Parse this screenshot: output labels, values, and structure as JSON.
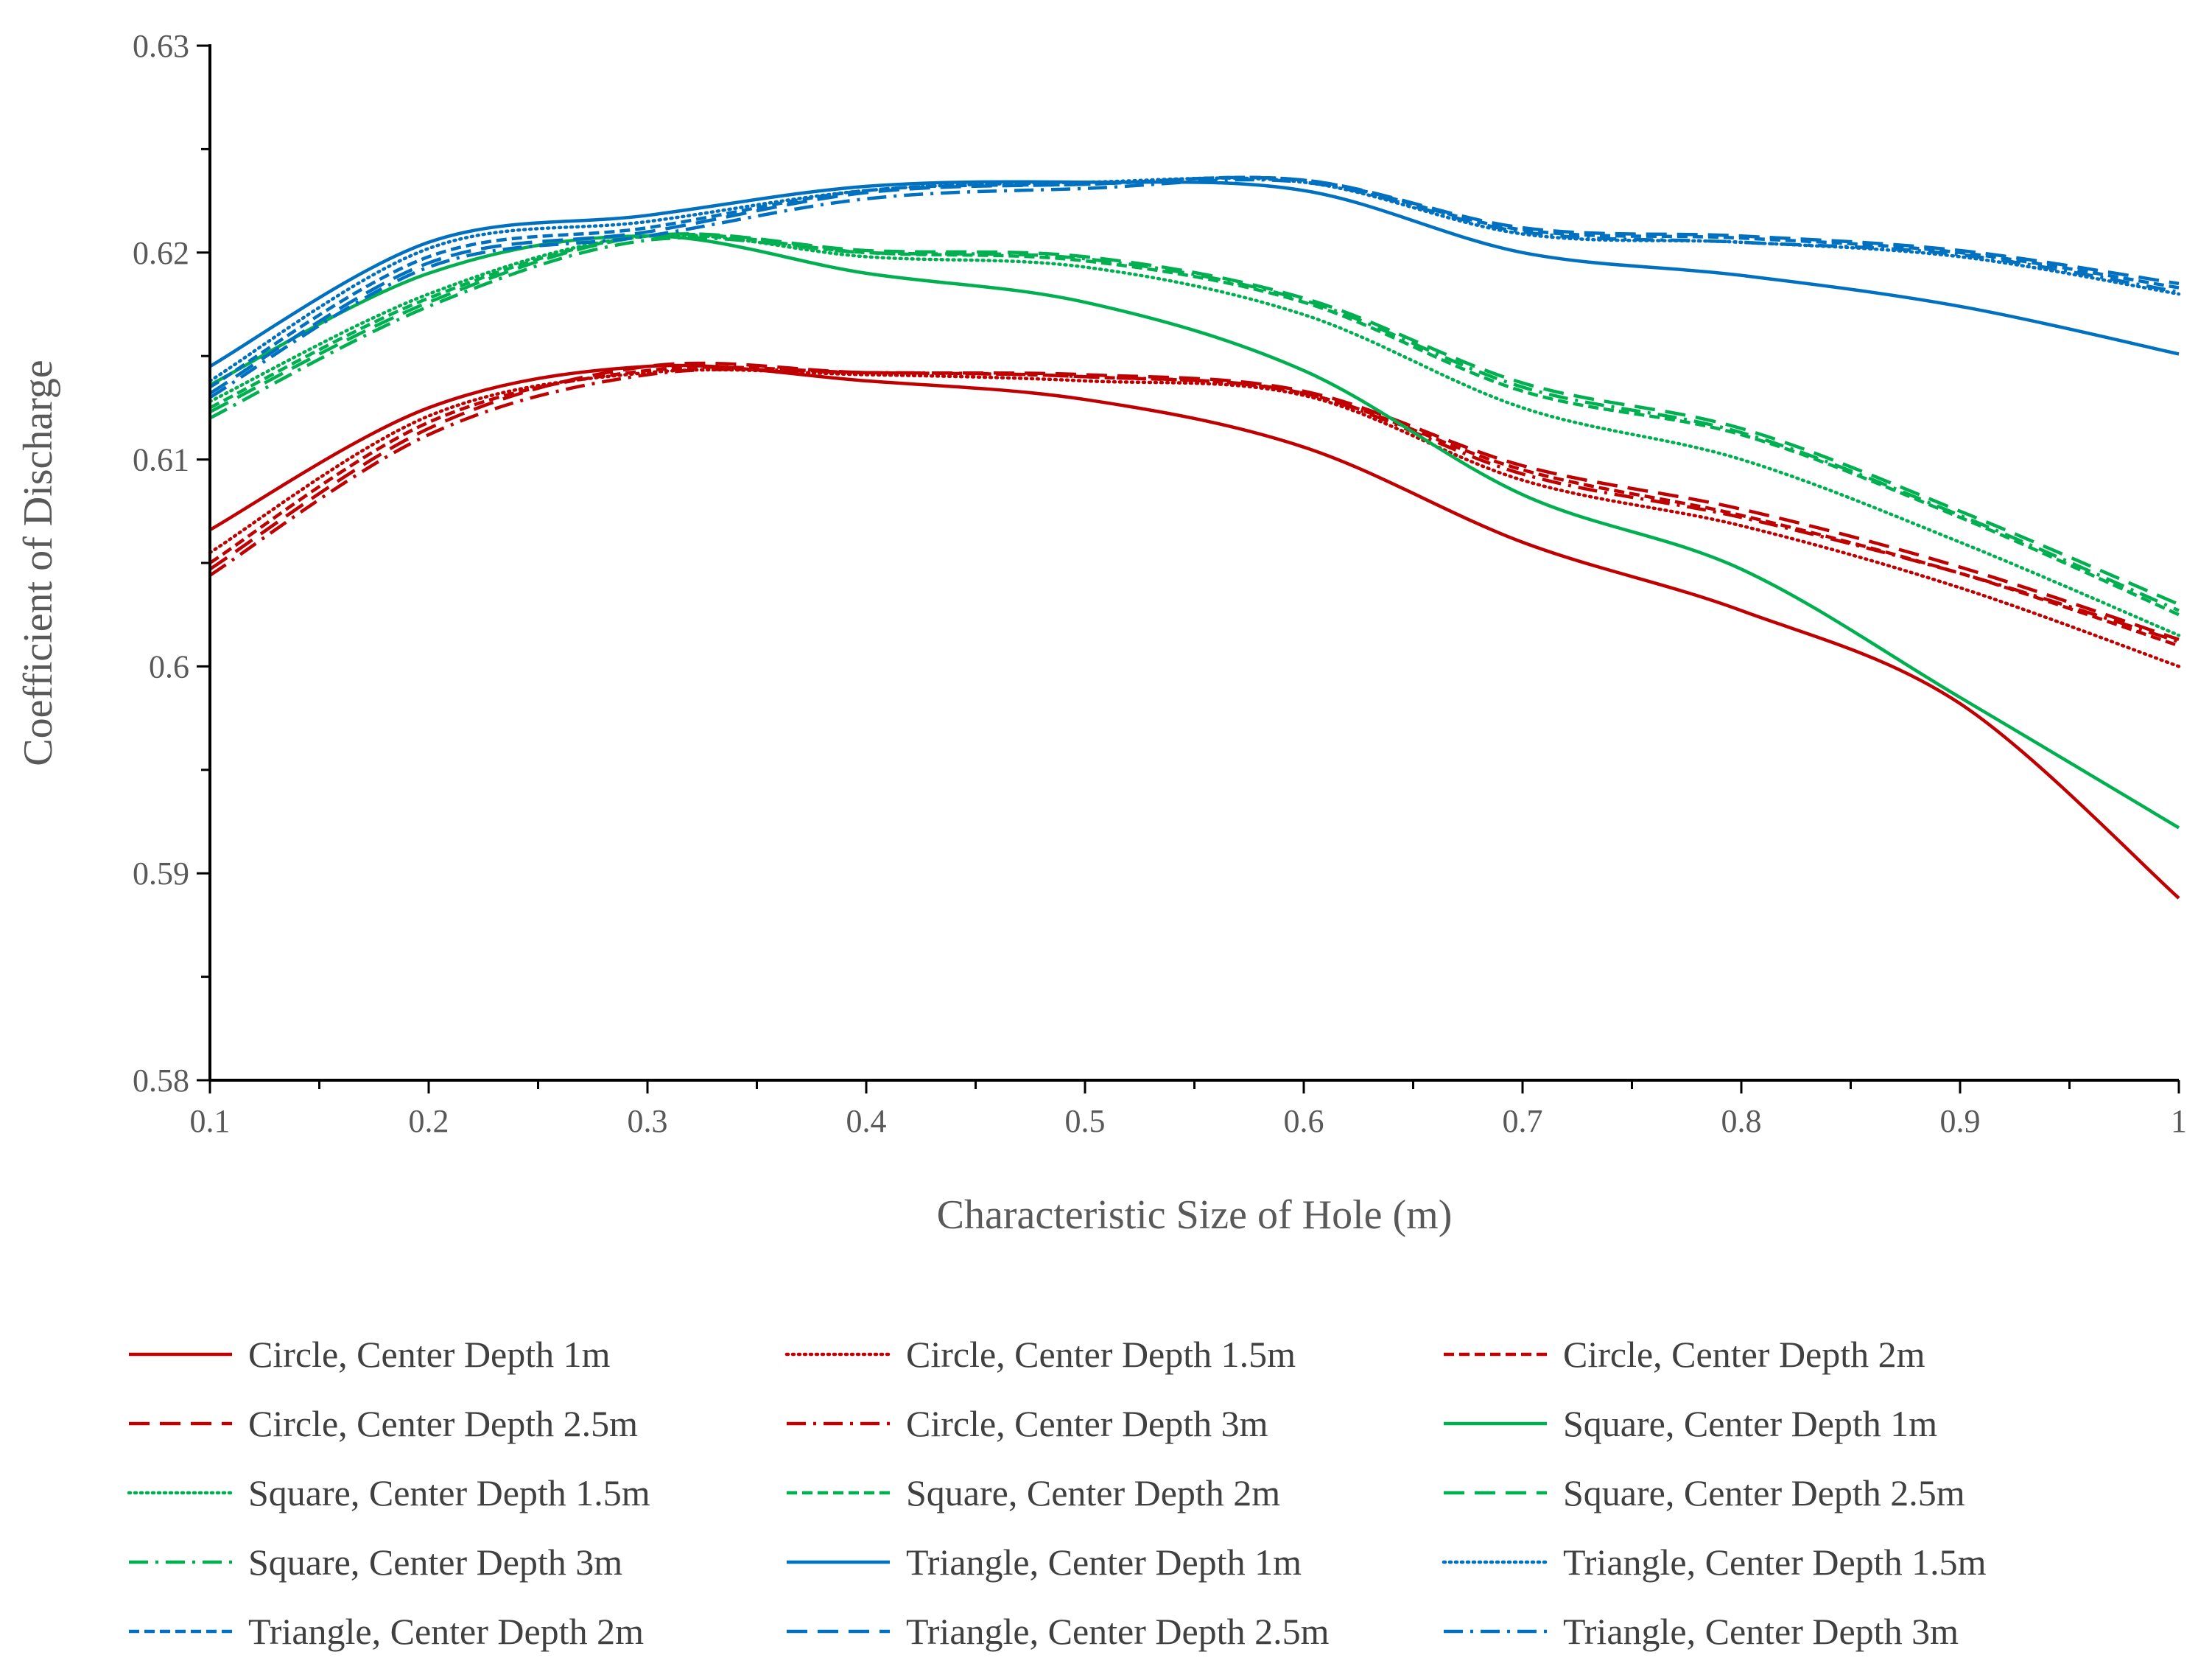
{
  "chart_data": {
    "type": "line",
    "title": "",
    "xlabel": "Characteristic Size of Hole (m)",
    "ylabel": "Coefficient of Discharge",
    "xlim": [
      0.1,
      1
    ],
    "ylim": [
      0.58,
      0.63
    ],
    "xticks": [
      "0.1",
      "0.2",
      "0.3",
      "0.4",
      "0.5",
      "0.6",
      "0.7",
      "0.8",
      "0.9",
      "1"
    ],
    "yticks": [
      "0.58",
      "0.59",
      "0.6",
      "0.61",
      "0.62",
      "0.63"
    ],
    "grid": false,
    "legend_position": "bottom",
    "x": [
      0.1,
      0.2,
      0.3,
      0.4,
      0.5,
      0.6,
      0.7,
      0.8,
      0.9,
      1.0
    ],
    "series": [
      {
        "name": "Circle, Center Depth 1m",
        "color": "#C00000",
        "dash": "solid",
        "values": [
          0.6066,
          0.6125,
          0.6145,
          0.6138,
          0.6129,
          0.6106,
          0.606,
          0.6027,
          0.5982,
          0.5888
        ]
      },
      {
        "name": "Circle, Center Depth 1.5m",
        "color": "#C00000",
        "dash": "dotted",
        "values": [
          0.6055,
          0.6121,
          0.6142,
          0.6141,
          0.6138,
          0.6131,
          0.609,
          0.6068,
          0.6038,
          0.6
        ]
      },
      {
        "name": "Circle, Center Depth 2m",
        "color": "#C00000",
        "dash": "dash-short",
        "values": [
          0.605,
          0.6118,
          0.6143,
          0.6142,
          0.614,
          0.6132,
          0.6095,
          0.6073,
          0.6045,
          0.601
        ]
      },
      {
        "name": "Circle, Center Depth 2.5m",
        "color": "#C00000",
        "dash": "dash-long",
        "values": [
          0.6047,
          0.6115,
          0.6145,
          0.6142,
          0.6141,
          0.6133,
          0.6097,
          0.6076,
          0.6048,
          0.6013
        ]
      },
      {
        "name": "Circle, Center Depth 3m",
        "color": "#C00000",
        "dash": "dash-dot",
        "values": [
          0.6044,
          0.6112,
          0.6141,
          0.6142,
          0.614,
          0.6132,
          0.6093,
          0.6072,
          0.6045,
          0.6012
        ]
      },
      {
        "name": "Square, Center Depth 1m",
        "color": "#00B050",
        "dash": "solid",
        "values": [
          0.6136,
          0.619,
          0.6208,
          0.619,
          0.6176,
          0.6143,
          0.6083,
          0.6047,
          0.5985,
          0.5922
        ]
      },
      {
        "name": "Square, Center Depth 1.5m",
        "color": "#00B050",
        "dash": "dotted",
        "values": [
          0.6128,
          0.618,
          0.6208,
          0.6198,
          0.6193,
          0.617,
          0.6125,
          0.61,
          0.606,
          0.6015
        ]
      },
      {
        "name": "Square, Center Depth 2m",
        "color": "#00B050",
        "dash": "dash-short",
        "values": [
          0.6125,
          0.6178,
          0.6208,
          0.62,
          0.6196,
          0.6176,
          0.6133,
          0.6112,
          0.6072,
          0.6025
        ]
      },
      {
        "name": "Square, Center Depth 2.5m",
        "color": "#00B050",
        "dash": "dash-long",
        "values": [
          0.6123,
          0.6176,
          0.6208,
          0.6201,
          0.6198,
          0.6178,
          0.6137,
          0.6115,
          0.6075,
          0.603
        ]
      },
      {
        "name": "Square, Center Depth 3m",
        "color": "#00B050",
        "dash": "dash-dot",
        "values": [
          0.612,
          0.6174,
          0.6206,
          0.62,
          0.6197,
          0.6177,
          0.6135,
          0.6113,
          0.6073,
          0.6027
        ]
      },
      {
        "name": "Triangle, Center Depth 1m",
        "color": "#0070C0",
        "dash": "solid",
        "values": [
          0.6145,
          0.6205,
          0.6218,
          0.6232,
          0.6234,
          0.623,
          0.62,
          0.6189,
          0.6174,
          0.6151
        ]
      },
      {
        "name": "Triangle, Center Depth 1.5m",
        "color": "#0070C0",
        "dash": "dotted",
        "values": [
          0.6138,
          0.6202,
          0.6215,
          0.623,
          0.6234,
          0.6234,
          0.6209,
          0.6205,
          0.6198,
          0.618
        ]
      },
      {
        "name": "Triangle, Center Depth 2m",
        "color": "#0070C0",
        "dash": "dash-short",
        "values": [
          0.6135,
          0.6198,
          0.6212,
          0.623,
          0.6233,
          0.6235,
          0.6211,
          0.6207,
          0.62,
          0.6183
        ]
      },
      {
        "name": "Triangle, Center Depth 2.5m",
        "color": "#0070C0",
        "dash": "dash-long",
        "values": [
          0.6132,
          0.6195,
          0.621,
          0.6229,
          0.6233,
          0.6235,
          0.6212,
          0.6208,
          0.6201,
          0.6185
        ]
      },
      {
        "name": "Triangle, Center Depth 3m",
        "color": "#0070C0",
        "dash": "dash-dot",
        "values": [
          0.613,
          0.6193,
          0.6208,
          0.6226,
          0.6231,
          0.6234,
          0.621,
          0.6205,
          0.6199,
          0.6181
        ]
      }
    ]
  }
}
